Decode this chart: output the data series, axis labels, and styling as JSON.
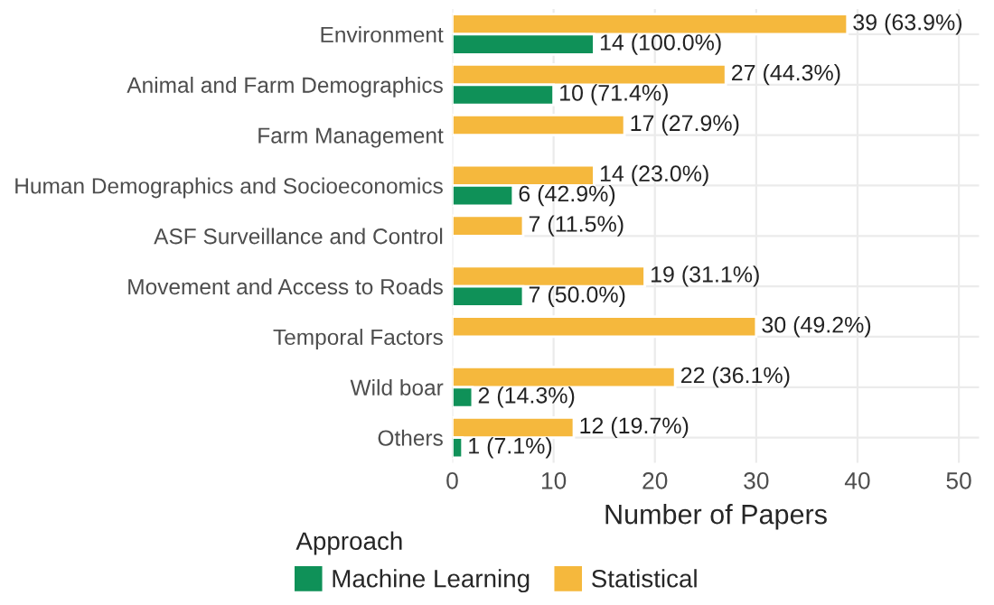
{
  "chart_data": {
    "type": "bar",
    "orientation": "horizontal",
    "xlabel": "Number of Papers",
    "legend_title": "Approach",
    "legend": "bottom",
    "categories": [
      "Environment",
      "Animal and Farm Demographics",
      "Farm Management",
      "Human Demographics and Socioeconomics",
      "ASF Surveillance and Control",
      "Movement and Access to Roads",
      "Temporal Factors",
      "Wild boar",
      "Others"
    ],
    "series": [
      {
        "name": "Statistical",
        "color": "#f5b83d",
        "values": [
          39,
          27,
          17,
          14,
          7,
          19,
          30,
          22,
          12
        ],
        "value_labels": [
          "39 (63.9%)",
          "27 (44.3%)",
          "17 (27.9%)",
          "14 (23.0%)",
          "7 (11.5%)",
          "19 (31.1%)",
          "30 (49.2%)",
          "22 (36.1%)",
          "12 (19.7%)"
        ]
      },
      {
        "name": "Machine Learning",
        "color": "#0f9158",
        "values": [
          14,
          10,
          null,
          6,
          null,
          7,
          null,
          2,
          1
        ],
        "value_labels": [
          "14 (100.0%)",
          "10 (71.4%)",
          null,
          "6 (42.9%)",
          null,
          "7 (50.0%)",
          null,
          "2 (14.3%)",
          "1 (7.1%)"
        ]
      }
    ],
    "xlim": [
      0,
      52
    ],
    "xticks": [
      0,
      10,
      20,
      30,
      40,
      50
    ],
    "grid": true
  }
}
